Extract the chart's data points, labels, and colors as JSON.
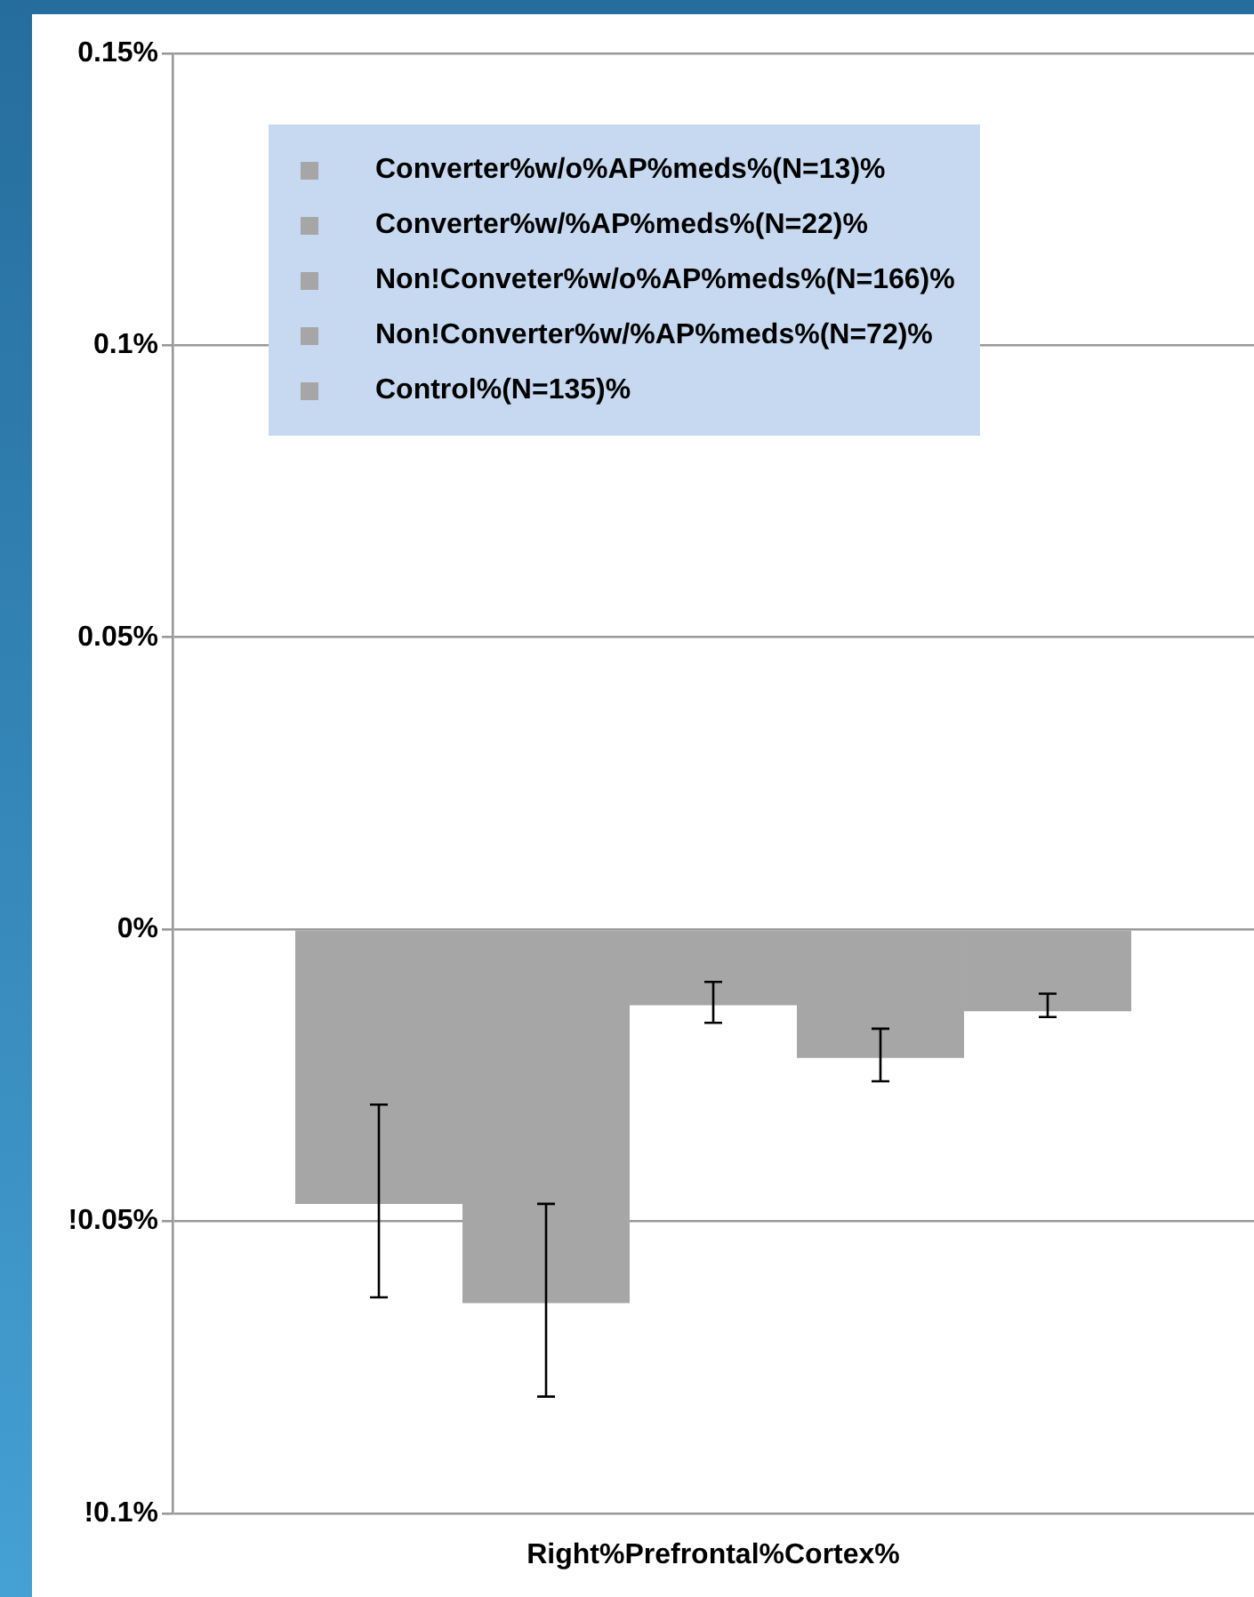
{
  "chart_data": {
    "type": "bar",
    "categories": [
      "Right%Prefrontal%Cortex%"
    ],
    "series": [
      {
        "name": "Converter%w/o%AP%meds%(N=13)%",
        "color": "#a6a6a6",
        "values": [
          -0.047
        ],
        "errors": [
          [
            -0.063,
            -0.03
          ]
        ]
      },
      {
        "name": "Converter%w/%AP%meds%(N=22)%",
        "color": "#a6a6a6",
        "values": [
          -0.064
        ],
        "errors": [
          [
            -0.08,
            -0.047
          ]
        ]
      },
      {
        "name": "Non!Conveter%w/o%AP%meds%(N=166)%",
        "color": "#a6a6a6",
        "values": [
          -0.013
        ],
        "errors": [
          [
            -0.016,
            -0.009
          ]
        ]
      },
      {
        "name": "Non!Converter%w/%AP%meds%(N=72)%",
        "color": "#a6a6a6",
        "values": [
          -0.022
        ],
        "errors": [
          [
            -0.026,
            -0.017
          ]
        ]
      },
      {
        "name": "Control%(N=135)%",
        "color": "#a6a6a6",
        "values": [
          -0.014
        ],
        "errors": [
          [
            -0.015,
            -0.011
          ]
        ]
      }
    ],
    "ylim": [
      -0.1,
      0.15
    ],
    "yticks": [
      {
        "value": -0.1,
        "label": "!0.1%"
      },
      {
        "value": -0.05,
        "label": "!0.05%"
      },
      {
        "value": 0,
        "label": "0%"
      },
      {
        "value": 0.05,
        "label": "0.05%"
      },
      {
        "value": 0.1,
        "label": "0.1%"
      },
      {
        "value": 0.15,
        "label": "0.15%"
      }
    ],
    "grid": "y",
    "legend": "top"
  }
}
